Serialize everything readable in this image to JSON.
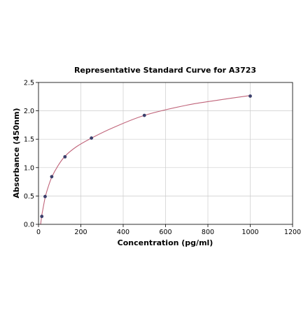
{
  "chart_data": {
    "type": "scatter",
    "title": "Representative Standard Curve for A3723",
    "xlabel": "Concentration (pg/ml)",
    "ylabel": "Absorbance (450nm)",
    "xlim": [
      0,
      1200
    ],
    "ylim": [
      0,
      2.5
    ],
    "x_ticks": [
      0,
      200,
      400,
      600,
      800,
      1000,
      1200
    ],
    "y_ticks": [
      0.0,
      0.5,
      1.0,
      1.5,
      2.0,
      2.5
    ],
    "x_tick_labels": [
      "0",
      "200",
      "400",
      "600",
      "800",
      "1000",
      "1200"
    ],
    "y_tick_labels": [
      "0.0",
      "0.5",
      "1.0",
      "1.5",
      "2.0",
      "2.5"
    ],
    "grid": true,
    "series": [
      {
        "type": "scatter",
        "x": [
          15.625,
          31.25,
          62.5,
          125,
          250,
          500,
          1000
        ],
        "y": [
          0.14,
          0.49,
          0.84,
          1.19,
          1.52,
          1.92,
          2.26
        ]
      },
      {
        "type": "line",
        "fit": "curve",
        "x": [
          10,
          15.625,
          20,
          31.25,
          45,
          62.5,
          90,
          125,
          180,
          250,
          350,
          500,
          700,
          850,
          1000
        ],
        "y": [
          0.0,
          0.16,
          0.25,
          0.47,
          0.65,
          0.83,
          1.02,
          1.2,
          1.37,
          1.52,
          1.7,
          1.92,
          2.1,
          2.19,
          2.27
        ]
      }
    ],
    "colors": {
      "points": "#3b3f6b",
      "fit_line": "#c0647a",
      "grid": "#cccccc",
      "axes": "#000000"
    }
  }
}
